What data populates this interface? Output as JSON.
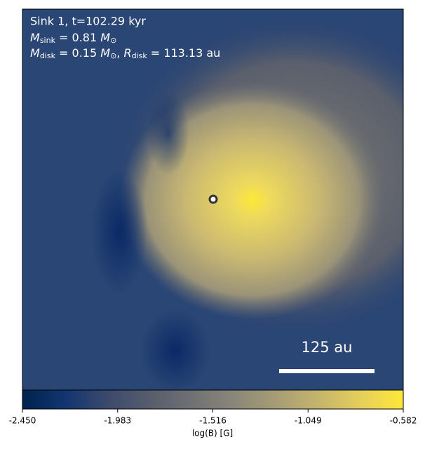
{
  "chart_data": {
    "type": "image",
    "annotations": {
      "line1": "Sink 1, t=102.29 kyr",
      "sink_mass": {
        "symbol": "M",
        "subscript": "sink",
        "text": " = 0.81 ",
        "unit": "M",
        "unit_subscript": "⊙"
      },
      "disk": {
        "symbol": "M",
        "subscript": "disk",
        "text": " = 0.15 ",
        "unit": "M",
        "unit_subscript": "⊙",
        "separator": ", ",
        "symbol2": "R",
        "subscript2": "disk",
        "text2": " = 113.13 au"
      }
    },
    "scale_bar_label": "125 au",
    "colorbar": {
      "label": "log(B) [G]",
      "lim": [
        -2.45,
        -0.582
      ],
      "ticks": [
        {
          "value": -2.45,
          "label": "-2.450"
        },
        {
          "value": -1.983,
          "label": "-1.983"
        },
        {
          "value": -1.516,
          "label": "-1.516"
        },
        {
          "value": -1.049,
          "label": "-1.049"
        },
        {
          "value": -0.582,
          "label": "-0.582"
        }
      ],
      "colormap": [
        "#00224e",
        "#123570",
        "#3b496c",
        "#575d6d",
        "#707173",
        "#8a8779",
        "#a69d75",
        "#c4b56c",
        "#e4cf5b",
        "#fee838"
      ]
    }
  }
}
